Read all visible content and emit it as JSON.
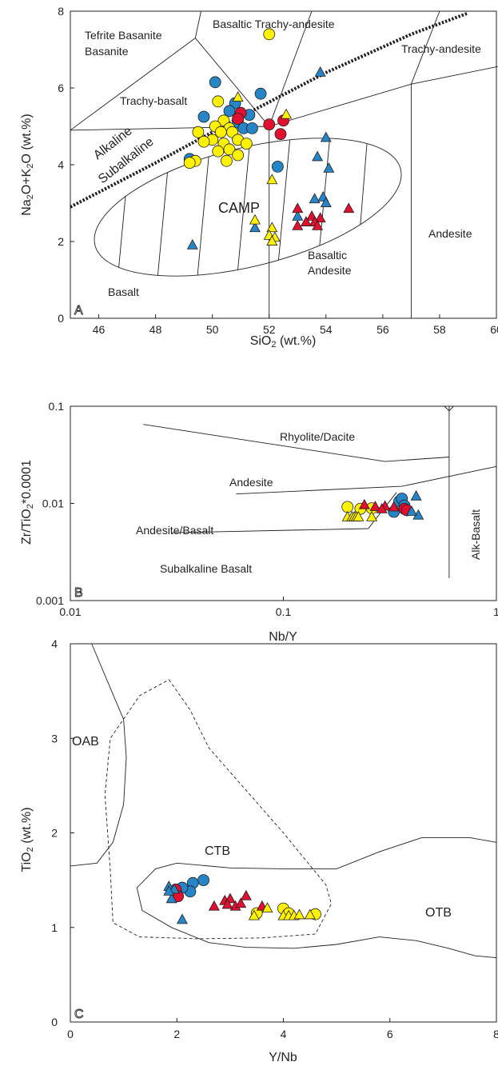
{
  "colors": {
    "blue": "#2585c7",
    "red": "#e0102e",
    "yellow": "#fff200",
    "ink": "#231f20"
  },
  "chart_data": [
    {
      "panel": "A",
      "type": "scatter",
      "xlabel": "SiO2 (wt.%)",
      "ylabel": "Na2O+K2O (wt.%)",
      "xlim": [
        45,
        60
      ],
      "ylim": [
        0,
        8
      ],
      "x_ticks": [
        "46",
        "48",
        "50",
        "52",
        "54",
        "56",
        "58",
        "60"
      ],
      "y_ticks": [
        "0",
        "2",
        "4",
        "6",
        "8"
      ],
      "fields": [
        "Tefrite Basanite",
        "Basaltic Trachy-andesite",
        "Trachy-andesite",
        "Trachy-basalt",
        "CAMP",
        "Andesite",
        "Basaltic Andesite",
        "Basalt"
      ],
      "divider_labels": [
        "Alkaline",
        "Subalkaline"
      ],
      "series": [
        {
          "marker": "circle",
          "color": "blue",
          "points": [
            [
              50.1,
              6.15
            ],
            [
              51.7,
              5.85
            ],
            [
              50.8,
              5.6
            ],
            [
              49.7,
              5.25
            ],
            [
              50.6,
              5.4
            ],
            [
              51.3,
              5.3
            ],
            [
              50.9,
              5.1
            ],
            [
              51.1,
              4.95
            ],
            [
              51.4,
              4.95
            ],
            [
              50.9,
              4.65
            ],
            [
              49.2,
              4.15
            ],
            [
              52.3,
              3.95
            ]
          ]
        },
        {
          "marker": "circle",
          "color": "red",
          "points": [
            [
              51.0,
              5.35
            ],
            [
              50.9,
              5.2
            ],
            [
              52.5,
              5.15
            ],
            [
              52.0,
              5.05
            ],
            [
              52.4,
              4.8
            ]
          ]
        },
        {
          "marker": "circle",
          "color": "yellow",
          "points": [
            [
              52.0,
              7.4
            ],
            [
              50.2,
              5.65
            ],
            [
              50.4,
              5.15
            ],
            [
              50.1,
              5.0
            ],
            [
              50.6,
              4.95
            ],
            [
              50.3,
              4.85
            ],
            [
              50.7,
              4.85
            ],
            [
              50.0,
              4.65
            ],
            [
              50.9,
              4.65
            ],
            [
              50.4,
              4.55
            ],
            [
              51.2,
              4.55
            ],
            [
              49.7,
              4.6
            ],
            [
              49.5,
              4.85
            ],
            [
              50.6,
              4.4
            ],
            [
              50.2,
              4.35
            ],
            [
              50.9,
              4.25
            ],
            [
              49.4,
              4.1
            ],
            [
              49.2,
              4.05
            ],
            [
              50.5,
              4.1
            ]
          ]
        },
        {
          "marker": "triangle",
          "color": "blue",
          "points": [
            [
              53.8,
              6.4
            ],
            [
              54.0,
              4.7
            ],
            [
              53.7,
              4.2
            ],
            [
              54.1,
              3.9
            ],
            [
              53.9,
              3.15
            ],
            [
              54.0,
              3.0
            ],
            [
              53.6,
              3.1
            ],
            [
              53.0,
              2.65
            ],
            [
              51.5,
              2.35
            ],
            [
              49.3,
              1.9
            ]
          ]
        },
        {
          "marker": "triangle",
          "color": "red",
          "points": [
            [
              53.0,
              2.85
            ],
            [
              53.5,
              2.65
            ],
            [
              53.8,
              2.6
            ],
            [
              53.6,
              2.5
            ],
            [
              53.7,
              2.4
            ],
            [
              53.0,
              2.4
            ],
            [
              53.3,
              2.5
            ],
            [
              54.8,
              2.85
            ]
          ]
        },
        {
          "marker": "triangle",
          "color": "yellow",
          "points": [
            [
              52.6,
              5.3
            ],
            [
              50.9,
              5.75
            ],
            [
              52.1,
              3.6
            ],
            [
              51.5,
              2.55
            ],
            [
              52.1,
              2.35
            ],
            [
              52.0,
              2.15
            ],
            [
              52.2,
              2.1
            ],
            [
              52.1,
              2.0
            ]
          ]
        }
      ]
    },
    {
      "panel": "B",
      "type": "scatter",
      "xlabel": "Nb/Y",
      "ylabel": "Zr/TiO2*0.0001",
      "xscale": "log",
      "yscale": "log",
      "xlim": [
        0.01,
        1
      ],
      "ylim": [
        0.001,
        0.1
      ],
      "x_ticks": [
        "0.01",
        "0.1",
        "1"
      ],
      "y_ticks": [
        "0.001",
        "0.01",
        "0.1"
      ],
      "fields": [
        "Rhyolite/Dacite",
        "Andesite",
        "Andesite/Basalt",
        "Subalkaline Basalt",
        "Alk-Basalt"
      ],
      "series": [
        {
          "marker": "circle",
          "color": "blue",
          "points": [
            [
              0.33,
              0.0082
            ],
            [
              0.35,
              0.0105
            ],
            [
              0.36,
              0.0112
            ],
            [
              0.37,
              0.0095
            ]
          ]
        },
        {
          "marker": "circle",
          "color": "red",
          "points": [
            [
              0.37,
              0.0088
            ],
            [
              0.38,
              0.0085
            ]
          ]
        },
        {
          "marker": "circle",
          "color": "yellow",
          "points": [
            [
              0.2,
              0.0092
            ],
            [
              0.23,
              0.0088
            ],
            [
              0.26,
              0.0089
            ]
          ]
        },
        {
          "marker": "triangle",
          "color": "blue",
          "points": [
            [
              0.42,
              0.0118
            ],
            [
              0.43,
              0.0075
            ],
            [
              0.4,
              0.0082
            ]
          ]
        },
        {
          "marker": "triangle",
          "color": "red",
          "points": [
            [
              0.24,
              0.0096
            ],
            [
              0.27,
              0.0092
            ],
            [
              0.3,
              0.0093
            ],
            [
              0.29,
              0.0087
            ],
            [
              0.33,
              0.0091
            ]
          ]
        },
        {
          "marker": "triangle",
          "color": "yellow",
          "points": [
            [
              0.2,
              0.0072
            ],
            [
              0.21,
              0.0072
            ],
            [
              0.215,
              0.0072
            ],
            [
              0.22,
              0.0072
            ],
            [
              0.225,
              0.0072
            ],
            [
              0.26,
              0.0072
            ]
          ]
        }
      ]
    },
    {
      "panel": "C",
      "type": "scatter",
      "xlabel": "Y/Nb",
      "ylabel": "TiO2 (wt.%)",
      "xlim": [
        0,
        8
      ],
      "ylim": [
        0,
        4
      ],
      "x_ticks": [
        "0",
        "2",
        "4",
        "6",
        "8"
      ],
      "y_ticks": [
        "0",
        "1",
        "2",
        "3",
        "4"
      ],
      "fields": [
        "OAB",
        "CTB",
        "OTB"
      ],
      "series": [
        {
          "marker": "circle",
          "color": "blue",
          "points": [
            [
              2.5,
              1.5
            ],
            [
              2.3,
              1.47
            ],
            [
              2.25,
              1.38
            ],
            [
              2.1,
              1.42
            ],
            [
              2.0,
              1.35
            ]
          ]
        },
        {
          "marker": "circle",
          "color": "red",
          "points": [
            [
              1.98,
              1.4
            ],
            [
              2.02,
              1.33
            ]
          ]
        },
        {
          "marker": "circle",
          "color": "yellow",
          "points": [
            [
              3.5,
              1.15
            ],
            [
              4.0,
              1.2
            ],
            [
              4.6,
              1.14
            ],
            [
              4.1,
              1.15
            ]
          ]
        },
        {
          "marker": "triangle",
          "color": "blue",
          "points": [
            [
              1.85,
              1.43
            ],
            [
              1.95,
              1.4
            ],
            [
              1.9,
              1.3
            ],
            [
              2.1,
              1.08
            ],
            [
              1.85,
              1.38
            ]
          ]
        },
        {
          "marker": "triangle",
          "color": "red",
          "points": [
            [
              2.7,
              1.22
            ],
            [
              2.9,
              1.28
            ],
            [
              3.0,
              1.3
            ],
            [
              3.3,
              1.33
            ],
            [
              3.1,
              1.22
            ],
            [
              3.6,
              1.22
            ],
            [
              3.2,
              1.25
            ],
            [
              2.95,
              1.24
            ]
          ]
        },
        {
          "marker": "triangle",
          "color": "yellow",
          "points": [
            [
              3.7,
              1.2
            ],
            [
              4.0,
              1.12
            ],
            [
              4.1,
              1.12
            ],
            [
              4.2,
              1.12
            ],
            [
              4.3,
              1.13
            ],
            [
              4.5,
              1.13
            ],
            [
              3.45,
              1.12
            ]
          ]
        }
      ]
    }
  ],
  "panel_letters": [
    "A",
    "B",
    "C"
  ]
}
